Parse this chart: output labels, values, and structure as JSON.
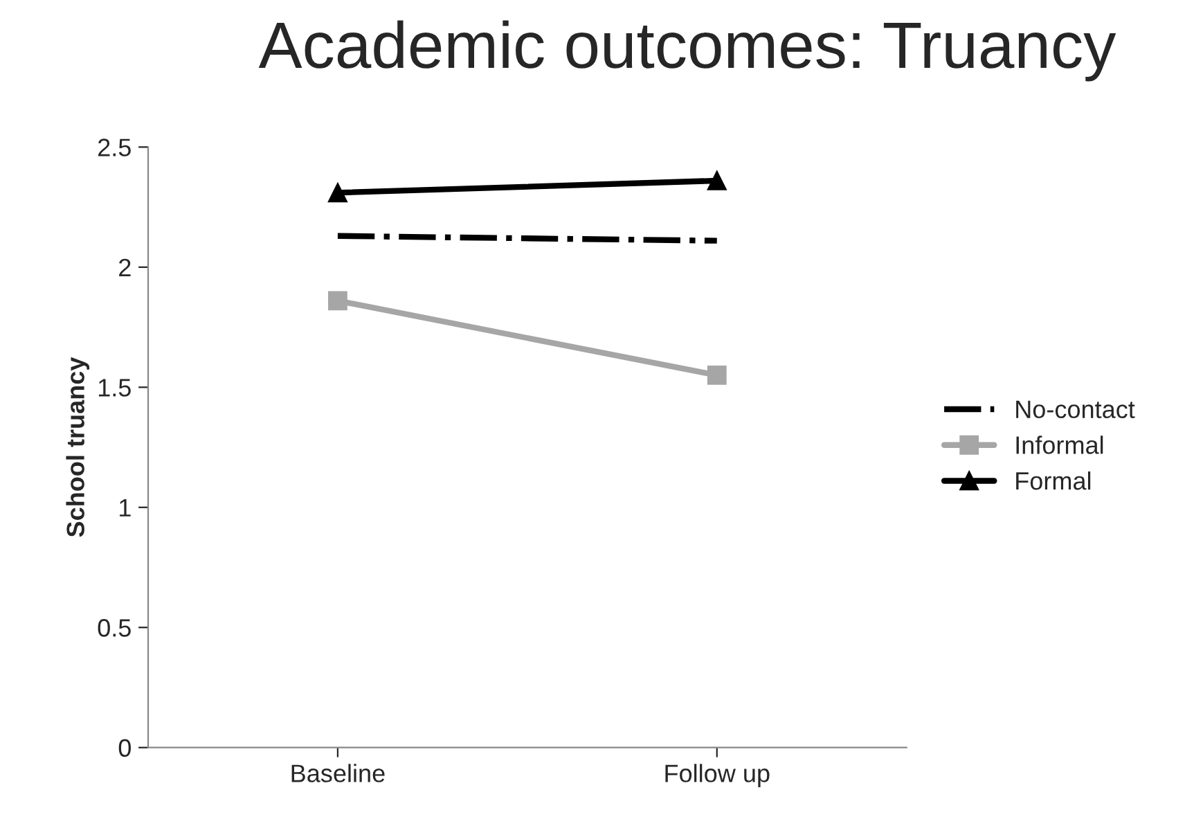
{
  "chart_data": {
    "type": "line",
    "title": "Academic outcomes: Truancy",
    "ylabel": "School truancy",
    "categories": [
      "Baseline",
      "Follow up"
    ],
    "series": [
      {
        "name": "No-contact",
        "color": "#000000",
        "values": [
          2.13,
          2.11
        ],
        "marker": "none",
        "line_style": "dashdot"
      },
      {
        "name": "Informal",
        "color": "#a6a6a6",
        "values": [
          1.86,
          1.55
        ],
        "marker": "square",
        "line_style": "solid"
      },
      {
        "name": "Formal",
        "color": "#000000",
        "values": [
          2.31,
          2.36
        ],
        "marker": "triangle",
        "line_style": "solid"
      }
    ],
    "ylim": [
      0,
      2.5
    ],
    "yticks": [
      0,
      0.5,
      1,
      1.5,
      2,
      2.5
    ],
    "grid": false,
    "legend": "right"
  }
}
